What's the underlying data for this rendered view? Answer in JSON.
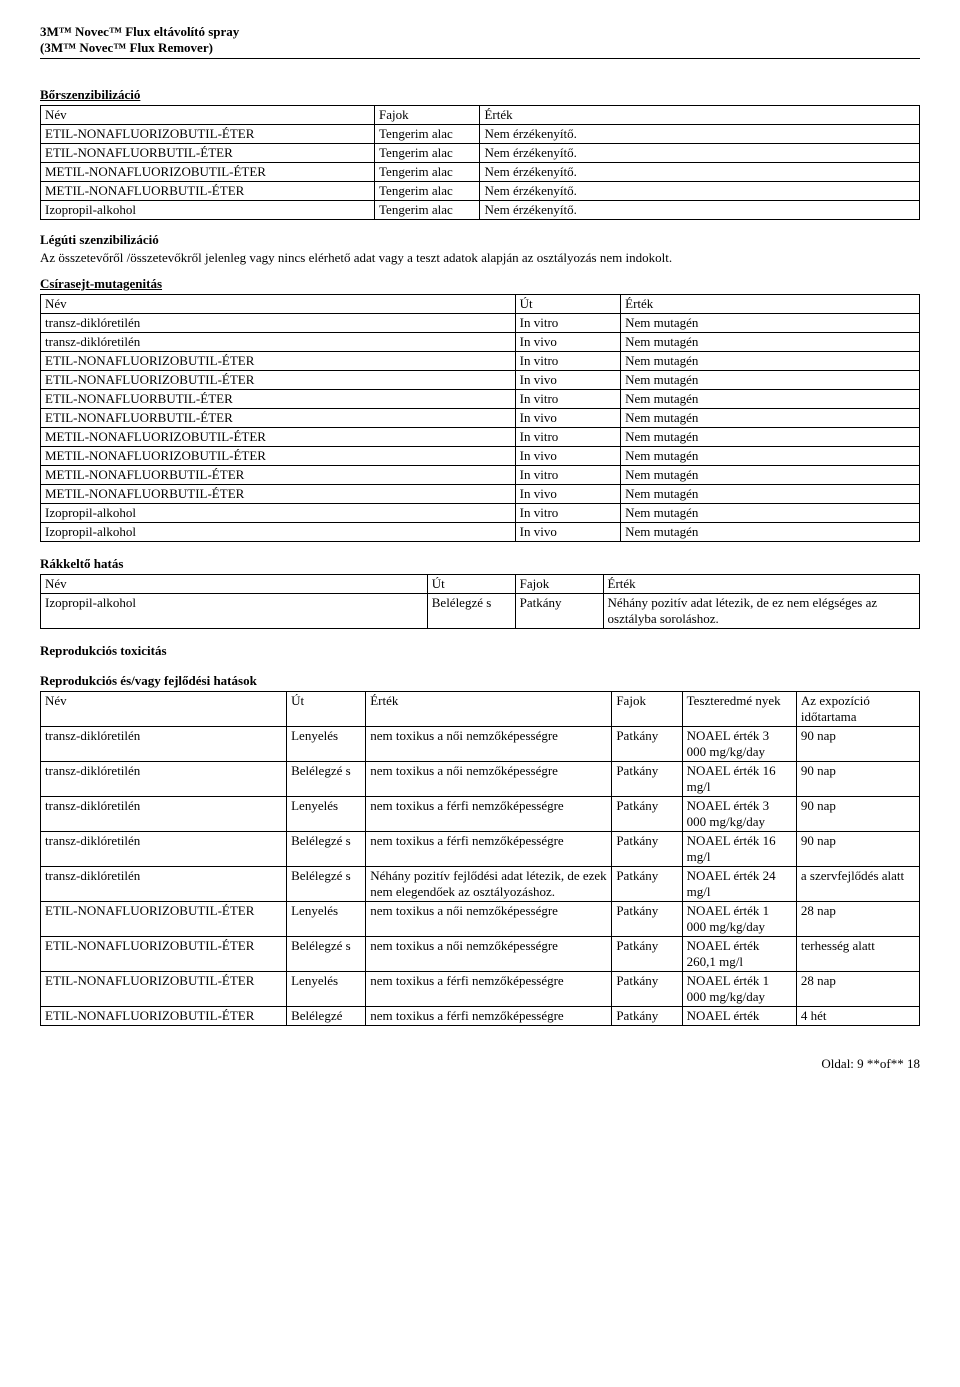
{
  "header": {
    "line1": "3M™ Novec™ Flux eltávolító spray",
    "line2": "(3M™ Novec™ Flux Remover)"
  },
  "section1": {
    "title": "Bőrszenzibilizáció",
    "cols": [
      "Név",
      "Fajok",
      "Érték"
    ],
    "rows": [
      [
        "ETIL-NONAFLUORIZOBUTIL-ÉTER",
        "Tengerim alac",
        "Nem érzékenyítő."
      ],
      [
        "ETIL-NONAFLUORBUTIL-ÉTER",
        "Tengerim alac",
        "Nem érzékenyítő."
      ],
      [
        "METIL-NONAFLUORIZOBUTIL-ÉTER",
        "Tengerim alac",
        "Nem érzékenyítő."
      ],
      [
        "METIL-NONAFLUORBUTIL-ÉTER",
        "Tengerim alac",
        "Nem érzékenyítő."
      ],
      [
        "Izopropil-alkohol",
        "Tengerim alac",
        "Nem érzékenyítő."
      ]
    ]
  },
  "section2": {
    "title": "Légúti szenzibilizáció",
    "text": "Az összetevőről /összetevőkről jelenleg vagy nincs elérhető adat vagy a teszt adatok alapján az osztályozás nem indokolt."
  },
  "section3": {
    "title": "Csírasejt-mutagenitás",
    "cols": [
      "Név",
      "Út",
      "Érték"
    ],
    "rows": [
      [
        "transz-diklóretilén",
        "In vitro",
        "Nem mutagén"
      ],
      [
        "transz-diklóretilén",
        "In vivo",
        "Nem mutagén"
      ],
      [
        "ETIL-NONAFLUORIZOBUTIL-ÉTER",
        "In vitro",
        "Nem mutagén"
      ],
      [
        "ETIL-NONAFLUORIZOBUTIL-ÉTER",
        "In vivo",
        "Nem mutagén"
      ],
      [
        "ETIL-NONAFLUORBUTIL-ÉTER",
        "In vitro",
        "Nem mutagén"
      ],
      [
        "ETIL-NONAFLUORBUTIL-ÉTER",
        "In vivo",
        "Nem mutagén"
      ],
      [
        "METIL-NONAFLUORIZOBUTIL-ÉTER",
        "In vitro",
        "Nem mutagén"
      ],
      [
        "METIL-NONAFLUORIZOBUTIL-ÉTER",
        "In vivo",
        "Nem mutagén"
      ],
      [
        "METIL-NONAFLUORBUTIL-ÉTER",
        "In vitro",
        "Nem mutagén"
      ],
      [
        "METIL-NONAFLUORBUTIL-ÉTER",
        "In vivo",
        "Nem mutagén"
      ],
      [
        "Izopropil-alkohol",
        "In vitro",
        "Nem mutagén"
      ],
      [
        "Izopropil-alkohol",
        "In vivo",
        "Nem mutagén"
      ]
    ]
  },
  "section4": {
    "title": "Rákkeltő hatás",
    "cols": [
      "Név",
      "Út",
      "Fajok",
      "Érték"
    ],
    "rows": [
      [
        "Izopropil-alkohol",
        "Belélegzé s",
        "Patkány",
        "Néhány pozitív adat létezik, de ez nem elégséges az osztályba soroláshoz."
      ]
    ]
  },
  "section5": {
    "title1": "Reprodukciós toxicitás",
    "title2": "Reprodukciós és/vagy fejlődési hatások",
    "cols": [
      "Név",
      "Út",
      "Érték",
      "Fajok",
      "Teszteredmé nyek",
      "Az expozíció időtartama"
    ],
    "rows": [
      [
        "transz-diklóretilén",
        "Lenyelés",
        "nem toxikus a női nemzőképességre",
        "Patkány",
        "NOAEL érték 3 000 mg/kg/day",
        "90 nap"
      ],
      [
        "transz-diklóretilén",
        "Belélegzé s",
        "nem toxikus a női nemzőképességre",
        "Patkány",
        "NOAEL érték 16 mg/l",
        "90 nap"
      ],
      [
        "transz-diklóretilén",
        "Lenyelés",
        "nem toxikus a férfi nemzőképességre",
        "Patkány",
        "NOAEL érték 3 000 mg/kg/day",
        "90 nap"
      ],
      [
        "transz-diklóretilén",
        "Belélegzé s",
        "nem toxikus a férfi nemzőképességre",
        "Patkány",
        "NOAEL érték 16 mg/l",
        "90 nap"
      ],
      [
        "transz-diklóretilén",
        "Belélegzé s",
        "Néhány pozitív fejlődési adat létezik, de ezek nem elegendőek az osztályozáshoz.",
        "Patkány",
        "NOAEL érték 24 mg/l",
        "a szervfejlődés alatt"
      ],
      [
        "ETIL-NONAFLUORIZOBUTIL-ÉTER",
        "Lenyelés",
        "nem toxikus a női nemzőképességre",
        "Patkány",
        "NOAEL érték 1 000 mg/kg/day",
        "28 nap"
      ],
      [
        "ETIL-NONAFLUORIZOBUTIL-ÉTER",
        "Belélegzé s",
        "nem toxikus a női nemzőképességre",
        "Patkány",
        "NOAEL érték 260,1 mg/l",
        "terhesség alatt"
      ],
      [
        "ETIL-NONAFLUORIZOBUTIL-ÉTER",
        "Lenyelés",
        "nem toxikus a férfi nemzőképességre",
        "Patkány",
        "NOAEL érték 1 000 mg/kg/day",
        "28 nap"
      ],
      [
        "ETIL-NONAFLUORIZOBUTIL-ÉTER",
        "Belélegzé",
        "nem toxikus a férfi nemzőképességre",
        "Patkány",
        "NOAEL érték",
        "4 hét"
      ]
    ]
  },
  "footer": "Oldal: 9 **of**  18"
}
